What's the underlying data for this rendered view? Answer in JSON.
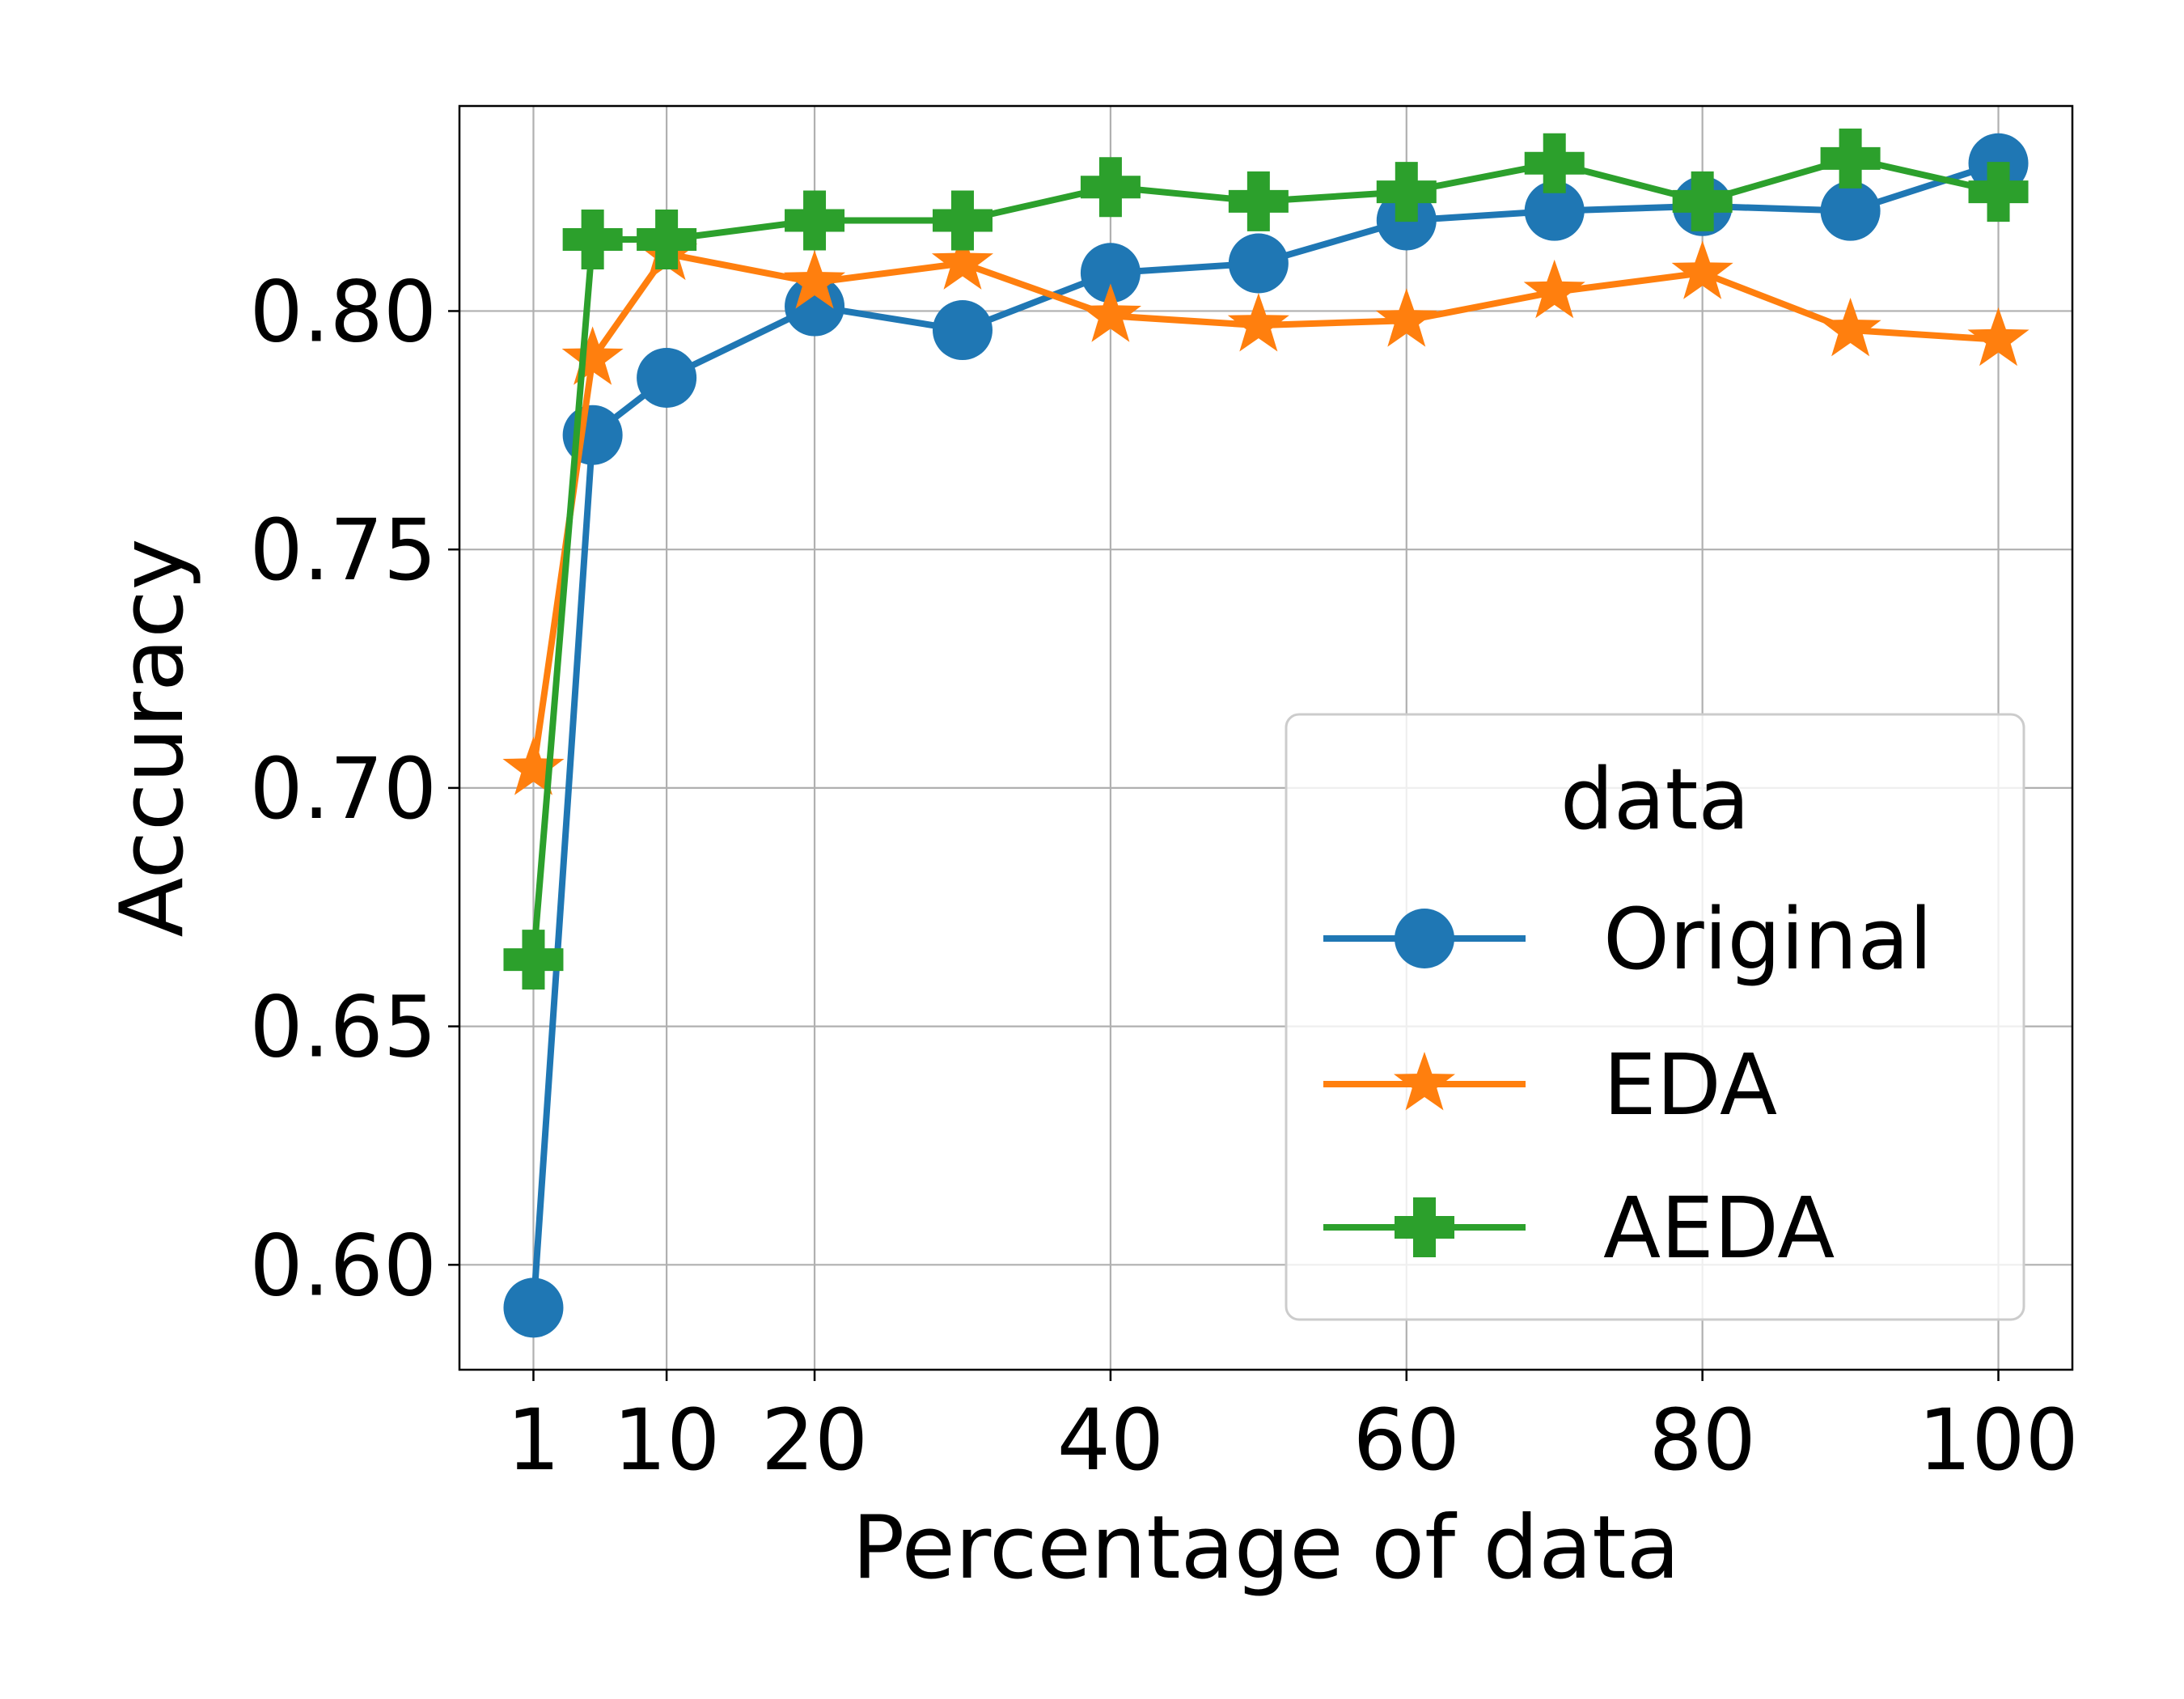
{
  "chart_data": {
    "type": "line",
    "title": "",
    "xlabel": "Percentage of data",
    "ylabel": "Accuracy",
    "xlim": [
      -4,
      105
    ],
    "ylim": [
      0.578,
      0.843
    ],
    "x": [
      1,
      5,
      10,
      20,
      30,
      40,
      50,
      60,
      70,
      80,
      90,
      100
    ],
    "x_ticks": [
      1,
      10,
      20,
      40,
      60,
      80,
      100
    ],
    "x_tick_labels": [
      "1",
      "10",
      "20",
      "40",
      "60",
      "80",
      "100"
    ],
    "y_ticks": [
      0.6,
      0.65,
      0.7,
      0.75,
      0.8
    ],
    "y_tick_labels": [
      "0.60",
      "0.65",
      "0.70",
      "0.75",
      "0.80"
    ],
    "grid": true,
    "legend": {
      "title": "data",
      "placement": "center-right"
    },
    "series": [
      {
        "name": "Original",
        "marker": "circle",
        "color": "#1f77b4",
        "values": [
          0.591,
          0.774,
          0.786,
          0.801,
          0.796,
          0.808,
          0.81,
          0.819,
          0.821,
          0.822,
          0.821,
          0.831
        ]
      },
      {
        "name": "EDA",
        "marker": "star",
        "color": "#ff7f0e",
        "values": [
          0.704,
          0.79,
          0.812,
          0.806,
          0.81,
          0.799,
          0.797,
          0.798,
          0.804,
          0.808,
          0.796,
          0.794
        ]
      },
      {
        "name": "AEDA",
        "marker": "plus",
        "color": "#2ca02c",
        "values": [
          0.664,
          0.815,
          0.815,
          0.819,
          0.819,
          0.826,
          0.823,
          0.825,
          0.831,
          0.823,
          0.832,
          0.825
        ]
      }
    ]
  }
}
